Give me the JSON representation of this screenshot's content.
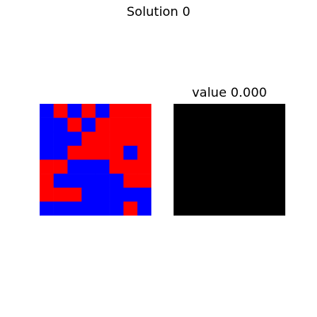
{
  "title": "Solution 0",
  "value_label": "value 0.000",
  "colors": {
    "red": "#ff0000",
    "blue": "#0000ff",
    "black": "#000000"
  },
  "grid": {
    "rows": 8,
    "cols": 8,
    "cells": [
      [
        "blue",
        "red",
        "blue",
        "red",
        "blue",
        "red",
        "red",
        "red"
      ],
      [
        "blue",
        "blue",
        "red",
        "blue",
        "red",
        "red",
        "red",
        "red"
      ],
      [
        "blue",
        "blue",
        "blue",
        "red",
        "red",
        "red",
        "red",
        "red"
      ],
      [
        "blue",
        "blue",
        "red",
        "red",
        "red",
        "red",
        "blue",
        "red"
      ],
      [
        "red",
        "red",
        "blue",
        "blue",
        "blue",
        "red",
        "red",
        "red"
      ],
      [
        "red",
        "blue",
        "blue",
        "blue",
        "blue",
        "blue",
        "red",
        "red"
      ],
      [
        "red",
        "red",
        "red",
        "blue",
        "blue",
        "blue",
        "blue",
        "blue"
      ],
      [
        "blue",
        "blue",
        "blue",
        "blue",
        "blue",
        "blue",
        "red",
        "blue"
      ]
    ]
  },
  "value_panel": {
    "fill": "black"
  }
}
